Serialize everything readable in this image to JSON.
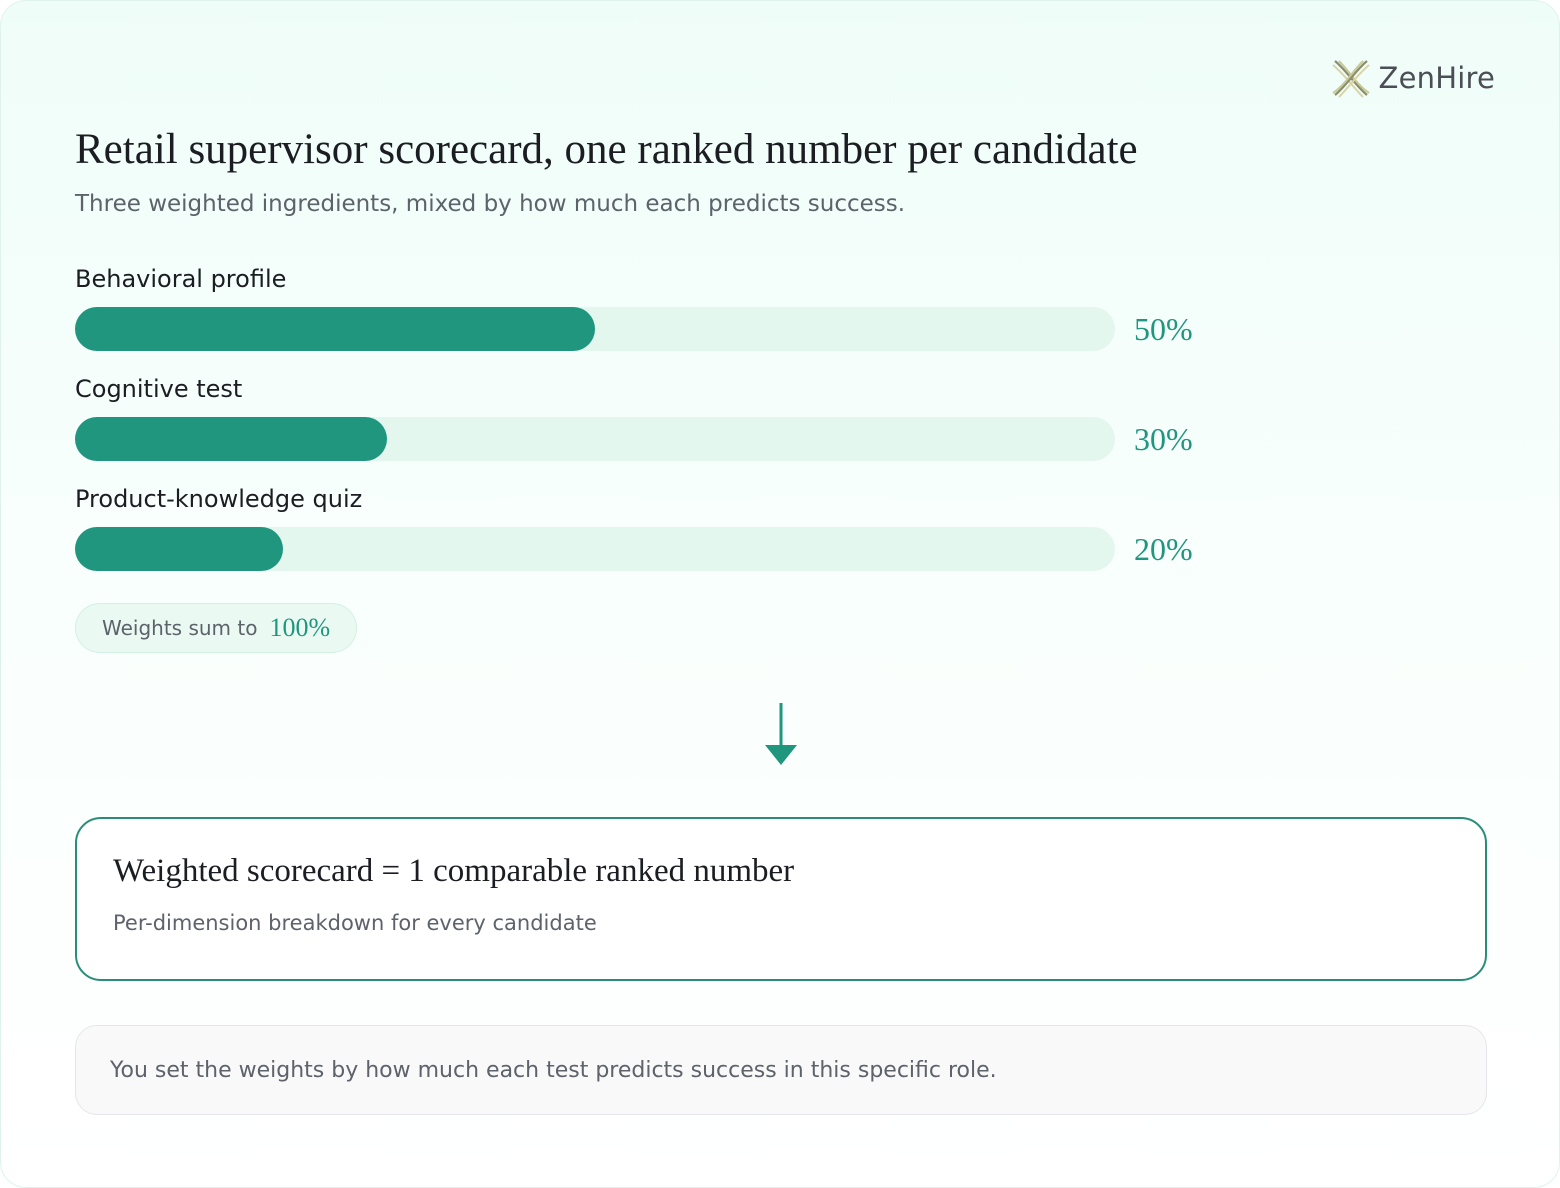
{
  "brand": {
    "name": "ZenHire",
    "logo_icon": "zenhire-logo-icon"
  },
  "header": {
    "title": "Retail supervisor scorecard, one ranked number per candidate",
    "subtitle": "Three weighted ingredients, mixed by how much each predicts success."
  },
  "weights": [
    {
      "label": "Behavioral profile",
      "value": 50,
      "display": "50%"
    },
    {
      "label": "Cognitive test",
      "value": 30,
      "display": "30%"
    },
    {
      "label": "Product-knowledge quiz",
      "value": 20,
      "display": "20%"
    }
  ],
  "sum": {
    "label": "Weights sum to",
    "value": "100%"
  },
  "flow": {
    "icon": "arrow-down-icon"
  },
  "result": {
    "title": "Weighted scorecard = 1 comparable ranked number",
    "subtitle": "Per-dimension breakdown for every candidate"
  },
  "note": {
    "text": "You set the weights by how much each test predicts success in this specific role."
  },
  "colors": {
    "accent": "#1f967d",
    "track": "#e3f7ef",
    "border": "#2a8d78",
    "text": "#1b1d22",
    "muted": "#5d626b"
  }
}
